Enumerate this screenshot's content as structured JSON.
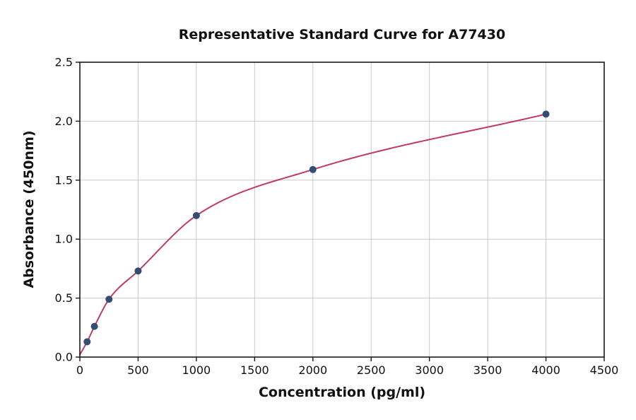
{
  "chart_data": {
    "type": "scatter",
    "title": "Representative Standard Curve for A77430",
    "xlabel": "Concentration (pg/ml)",
    "ylabel": "Absorbance (450nm)",
    "xlim": [
      0,
      4500
    ],
    "ylim": [
      0,
      2.5
    ],
    "xticks": [
      0,
      500,
      1000,
      1500,
      2000,
      2500,
      3000,
      3500,
      4000,
      4500
    ],
    "xtick_labels": [
      "0",
      "500",
      "1000",
      "1500",
      "2000",
      "2500",
      "3000",
      "3500",
      "4000",
      "4500"
    ],
    "yticks": [
      0,
      0.5,
      1.0,
      1.5,
      2.0,
      2.5
    ],
    "ytick_labels": [
      "0.0",
      "0.5",
      "1.0",
      "1.5",
      "2.0",
      "2.5"
    ],
    "grid": true,
    "legend": "none",
    "points": [
      {
        "x": 62.5,
        "y": 0.13
      },
      {
        "x": 125,
        "y": 0.26
      },
      {
        "x": 250,
        "y": 0.49
      },
      {
        "x": 500,
        "y": 0.73
      },
      {
        "x": 1000,
        "y": 1.2
      },
      {
        "x": 2000,
        "y": 1.59
      },
      {
        "x": 4000,
        "y": 2.06
      }
    ],
    "curve_start": {
      "x": 0,
      "y": 0.02
    },
    "colors": {
      "point": "#334d74",
      "curve": "#c13a63",
      "grid": "#c9c9c9",
      "axis": "#1a1a1a",
      "text": "#111111",
      "background": "#ffffff"
    }
  }
}
